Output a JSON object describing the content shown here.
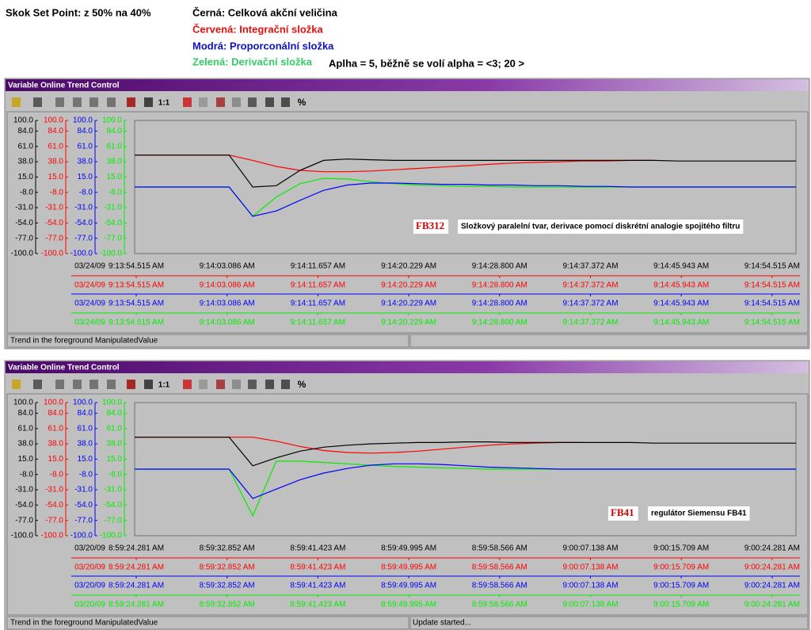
{
  "header": {
    "title": "Skok Set Point: z 50% na 40%",
    "legend": [
      {
        "text": "Černá: Celková akční veličina",
        "color": "#000000"
      },
      {
        "text": "Červená: Integrační složka",
        "color": "#e01010"
      },
      {
        "text": "Modrá: Proporconální složka",
        "color": "#1010c0"
      },
      {
        "text": "Zelená: Derivační složka",
        "color": "#33cc66"
      }
    ],
    "note": "Aplha = 5, běžně se volí alpha = <3; 20 >"
  },
  "panels": [
    {
      "title": "Variable Online Trend Control",
      "toolbar": [
        "1:1",
        "%"
      ],
      "ylim": [
        -100,
        100
      ],
      "yticks": [
        {
          "value": 100,
          "label": "100.0"
        },
        {
          "value": 84,
          "label": "84.0"
        },
        {
          "value": 61,
          "label": "61.0"
        },
        {
          "value": 38,
          "label": "38.0"
        },
        {
          "value": 15,
          "label": "15.0"
        },
        {
          "value": -8,
          "label": "-8.0"
        },
        {
          "value": -31,
          "label": "-31.0"
        },
        {
          "value": -54,
          "label": "-54.0"
        },
        {
          "value": -77,
          "label": "-77.0"
        },
        {
          "value": -100,
          "label": "-100.0"
        }
      ],
      "date": "03/24/09",
      "times": [
        "9:13:54.515 AM",
        "9:14:03.086 AM",
        "9:14:11.657 AM",
        "9:14:20.229 AM",
        "9:14:28.800 AM",
        "9:14:37.372 AM",
        "9:14:45.943 AM",
        "9:14:54.515 AM"
      ],
      "series": [
        {
          "color": "#000000",
          "values": [
            48,
            48,
            48,
            48,
            48,
            0,
            2,
            25,
            40,
            42,
            41,
            40,
            40,
            40,
            40,
            40,
            40,
            40,
            40,
            40,
            40,
            40,
            40,
            39,
            39,
            39,
            39,
            39,
            39
          ]
        },
        {
          "color": "#ff0000",
          "values": [
            48,
            48,
            48,
            48,
            48,
            40,
            31,
            25,
            23,
            23,
            24,
            26,
            28,
            30,
            32,
            34,
            36,
            37,
            38,
            39,
            39,
            40,
            40,
            null,
            null,
            null,
            null,
            null,
            null
          ]
        },
        {
          "color": "#0000ff",
          "values": [
            0,
            0,
            0,
            0,
            0,
            -44,
            -36,
            -20,
            -5,
            3,
            6,
            6,
            5,
            4,
            4,
            3,
            3,
            2,
            2,
            1,
            1,
            0,
            0,
            0,
            0,
            0,
            0,
            0,
            0
          ]
        },
        {
          "color": "#00ee00",
          "values": [
            0,
            0,
            0,
            0,
            0,
            -44,
            -15,
            5,
            13,
            12,
            8,
            5,
            3,
            2,
            1,
            1,
            0,
            0,
            0,
            0,
            0,
            0,
            0,
            0,
            0,
            0,
            0,
            0,
            0
          ]
        }
      ],
      "annotation": {
        "label": "FB312",
        "text": "Složkový paralelní tvar, derivace pomocí diskrétní analogie spojitého filtru"
      },
      "status": [
        "Trend in the foreground ManipulatedValue"
      ]
    },
    {
      "title": "Variable Online Trend Control",
      "toolbar": [
        "1:1",
        "%"
      ],
      "ylim": [
        -100,
        100
      ],
      "yticks": [
        {
          "value": 100,
          "label": "100.0"
        },
        {
          "value": 84,
          "label": "84.0"
        },
        {
          "value": 61,
          "label": "61.0"
        },
        {
          "value": 38,
          "label": "38.0"
        },
        {
          "value": 15,
          "label": "15.0"
        },
        {
          "value": -8,
          "label": "-8.0"
        },
        {
          "value": -31,
          "label": "-31.0"
        },
        {
          "value": -54,
          "label": "-54.0"
        },
        {
          "value": -77,
          "label": "-77.0"
        },
        {
          "value": -100,
          "label": "-100.0"
        }
      ],
      "date": "03/20/09",
      "times": [
        "8:59:24.281 AM",
        "8:59:32.852 AM",
        "8:59:41.423 AM",
        "8:59:49.995 AM",
        "8:59:58.566 AM",
        "9:00:07.138 AM",
        "9:00:15.709 AM",
        "9:00:24.281 AM"
      ],
      "series": [
        {
          "color": "#000000",
          "values": [
            48,
            48,
            48,
            48,
            48,
            5,
            17,
            27,
            33,
            36,
            38,
            39,
            40,
            40,
            41,
            41,
            40,
            40,
            40,
            40,
            40,
            40,
            39,
            39,
            39,
            39,
            39,
            39,
            39
          ]
        },
        {
          "color": "#ff0000",
          "values": [
            48,
            48,
            48,
            48,
            48,
            48,
            42,
            34,
            28,
            25,
            24,
            25,
            27,
            30,
            33,
            36,
            38,
            39,
            40,
            40,
            null,
            null,
            null,
            null,
            null,
            null,
            null,
            null,
            null
          ]
        },
        {
          "color": "#0000ff",
          "values": [
            0,
            0,
            0,
            0,
            0,
            -44,
            -30,
            -16,
            -6,
            1,
            6,
            8,
            8,
            7,
            5,
            3,
            2,
            1,
            0,
            0,
            0,
            0,
            0,
            0,
            0,
            0,
            0,
            0,
            0
          ]
        },
        {
          "color": "#00ee00",
          "values": [
            0,
            0,
            0,
            0,
            0,
            -70,
            12,
            12,
            10,
            8,
            6,
            4,
            3,
            2,
            1,
            0,
            0,
            0,
            0,
            0,
            0,
            0,
            0,
            0,
            0,
            0,
            0,
            0,
            0
          ]
        }
      ],
      "annotation": {
        "label": "FB41",
        "text": "regulátor Siemensu FB41"
      },
      "status": [
        "Trend in the foreground ManipulatedValue",
        "Update started..."
      ]
    }
  ]
}
